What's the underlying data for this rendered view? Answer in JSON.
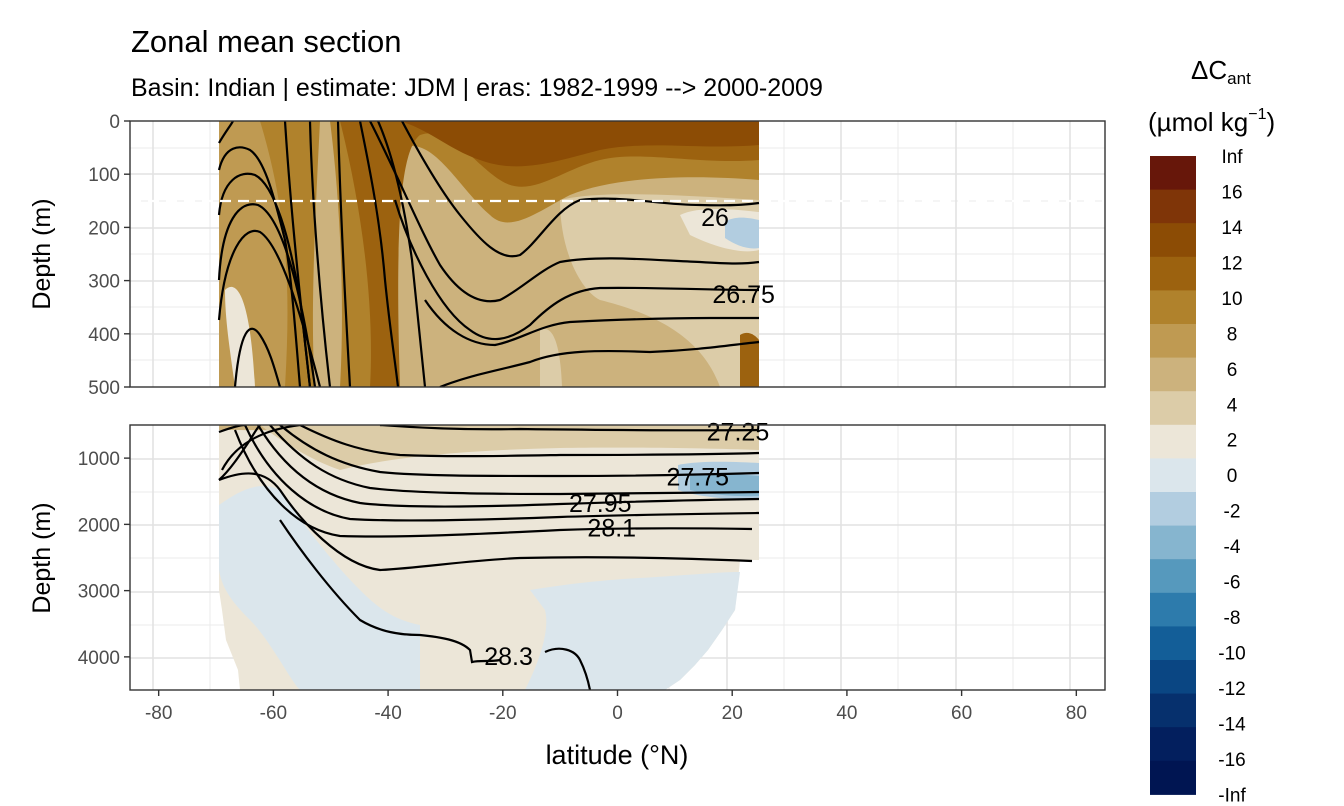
{
  "chart_data": {
    "type": "heatmap",
    "title": "Zonal mean section",
    "subtitle": "Basin: Indian | estimate: JDM  | eras: 1982-1999 --> 2000-2009",
    "xlabel": "latitude (°N)",
    "ylabel": "Depth (m)",
    "x_ticks": [
      -80,
      -60,
      -40,
      -20,
      0,
      20,
      40,
      60,
      80
    ],
    "xlim": [
      -85,
      85
    ],
    "upper_panel": {
      "ylim": [
        500,
        0
      ],
      "y_ticks": [
        0,
        100,
        200,
        300,
        400,
        500
      ],
      "dashed_depth": 150
    },
    "lower_panel": {
      "ylim": [
        4500,
        500
      ],
      "y_ticks": [
        1000,
        2000,
        3000,
        4000
      ]
    },
    "data_lat_range": [
      -69.5,
      24.5
    ],
    "legend": {
      "title_main": "ΔC",
      "title_sub": "ant",
      "unit_main": "(µmol kg",
      "unit_sup": "−1",
      "unit_close": ")",
      "placement": "right",
      "labels": [
        "Inf",
        "16",
        "14",
        "12",
        "10",
        "8",
        "6",
        "4",
        "2",
        "0",
        "-2",
        "-4",
        "-6",
        "-8",
        "-10",
        "-12",
        "-14",
        "-16",
        "-Inf"
      ],
      "colors": [
        "#67170a",
        "#7f3508",
        "#8c4c05",
        "#9c620f",
        "#b0822c",
        "#bf9a52",
        "#ccb27d",
        "#dccca8",
        "#ece6d8",
        "#dbe6ec",
        "#b2cde0",
        "#86b5cf",
        "#5699bd",
        "#2d7bac",
        "#135e98",
        "#0a4683",
        "#06306d",
        "#031f5e",
        "#001552"
      ]
    },
    "contour_labels_upper": [
      {
        "text": "26",
        "lat": 17,
        "depth": 180
      },
      {
        "text": "26.75",
        "lat": 22,
        "depth": 325
      }
    ],
    "contour_labels_lower": [
      {
        "text": "27.25",
        "lat": 21,
        "depth": 600
      },
      {
        "text": "27.75",
        "lat": 14,
        "depth": 1280
      },
      {
        "text": "27.95",
        "lat": -3,
        "depth": 1680
      },
      {
        "text": "28.1",
        "lat": -1,
        "depth": 2050
      },
      {
        "text": "28.3",
        "lat": -19,
        "depth": 3990
      }
    ]
  }
}
